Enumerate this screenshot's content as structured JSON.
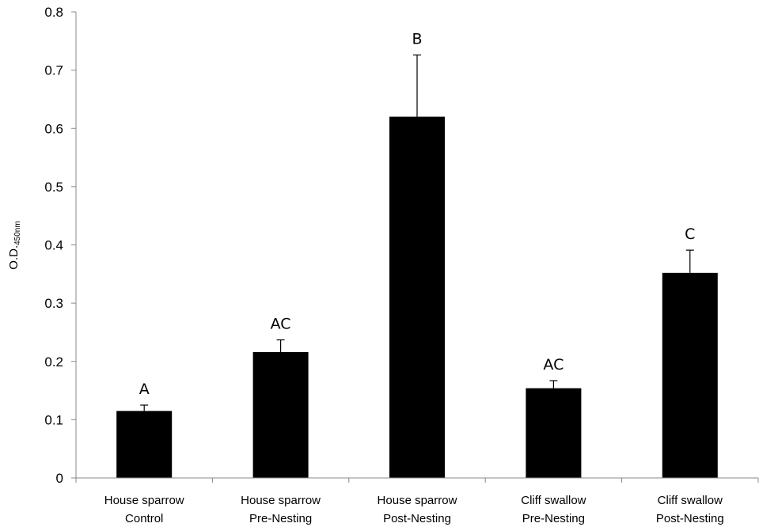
{
  "chart_data": {
    "type": "bar",
    "title": "",
    "xlabel": "",
    "ylabel": "O.D.",
    "ylabel_subscript": "450nm",
    "ylim": [
      0,
      0.8
    ],
    "yticks": [
      "0",
      "0.1",
      "0.2",
      "0.3",
      "0.4",
      "0.5",
      "0.6",
      "0.7",
      "0.8"
    ],
    "ytick_values": [
      0,
      0.1,
      0.2,
      0.3,
      0.4,
      0.5,
      0.6,
      0.7,
      0.8
    ],
    "grid": false,
    "bar_color": "#000000",
    "categories": [
      [
        "House sparrow",
        "Control"
      ],
      [
        "House sparrow",
        "Pre-Nesting"
      ],
      [
        "House sparrow",
        "Post-Nesting"
      ],
      [
        "Cliff swallow",
        "Pre-Nesting"
      ],
      [
        "Cliff swallow",
        "Post-Nesting"
      ]
    ],
    "values": [
      0.115,
      0.216,
      0.62,
      0.154,
      0.352
    ],
    "error": [
      0.01,
      0.021,
      0.106,
      0.013,
      0.039
    ],
    "significance_labels": [
      "A",
      "AC",
      "B",
      "AC",
      "C"
    ]
  }
}
